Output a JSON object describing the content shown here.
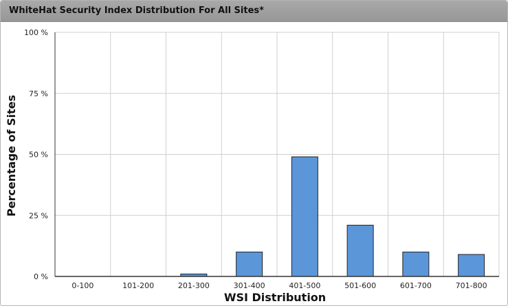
{
  "chart_data": {
    "type": "bar",
    "title": "WhiteHat Security Index Distribution For All Sites*",
    "xlabel": "WSI Distribution",
    "ylabel": "Percentage of Sites",
    "categories": [
      "0-100",
      "101-200",
      "201-300",
      "301-400",
      "401-500",
      "501-600",
      "601-700",
      "701-800"
    ],
    "values": [
      0,
      0,
      1,
      10,
      49,
      21,
      10,
      9
    ],
    "ylim": [
      0,
      100
    ],
    "yticks": [
      0,
      25,
      50,
      75,
      100
    ],
    "ytick_labels": [
      "0 %",
      "25 %",
      "50 %",
      "75 %",
      "100 %"
    ],
    "grid": true,
    "bar_color": "#5b96d9"
  }
}
